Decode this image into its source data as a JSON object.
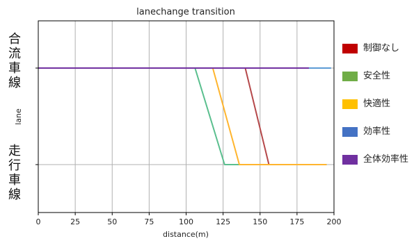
{
  "chart_data": {
    "type": "line",
    "title": "lanechange transition",
    "xlabel": "distance(m)",
    "ylabel": "lane",
    "xlim": [
      0,
      200
    ],
    "xticks": [
      0,
      25,
      50,
      75,
      100,
      125,
      150,
      175,
      200
    ],
    "grid": true,
    "legend_position": "right",
    "lane_labels": {
      "upper": [
        "合",
        "流",
        "車",
        "線"
      ],
      "lower": [
        "走",
        "行",
        "車",
        "線"
      ]
    },
    "series": [
      {
        "name": "制御なし",
        "color": "#c00000",
        "line_color": "#b5484a",
        "points": [
          [
            0,
            1
          ],
          [
            140,
            1
          ],
          [
            156,
            0
          ],
          [
            195,
            0
          ]
        ]
      },
      {
        "name": "安全性",
        "color": "#70ad47",
        "line_color": "#5abf8e",
        "points": [
          [
            0,
            1
          ],
          [
            106,
            1
          ],
          [
            126,
            0
          ],
          [
            195,
            0
          ]
        ]
      },
      {
        "name": "快適性",
        "color": "#ffc000",
        "line_color": "#ffb52e",
        "points": [
          [
            0,
            1
          ],
          [
            118,
            1
          ],
          [
            136,
            0
          ],
          [
            195,
            0
          ]
        ]
      },
      {
        "name": "効率性",
        "color": "#4472c4",
        "line_color": "#5b9bd5",
        "points": [
          [
            0,
            1
          ],
          [
            198,
            1
          ]
        ]
      },
      {
        "name": "全体効率性",
        "color": "#7030a0",
        "line_color": "#7030a0",
        "points": [
          [
            0,
            1
          ],
          [
            183,
            1
          ]
        ]
      }
    ]
  }
}
